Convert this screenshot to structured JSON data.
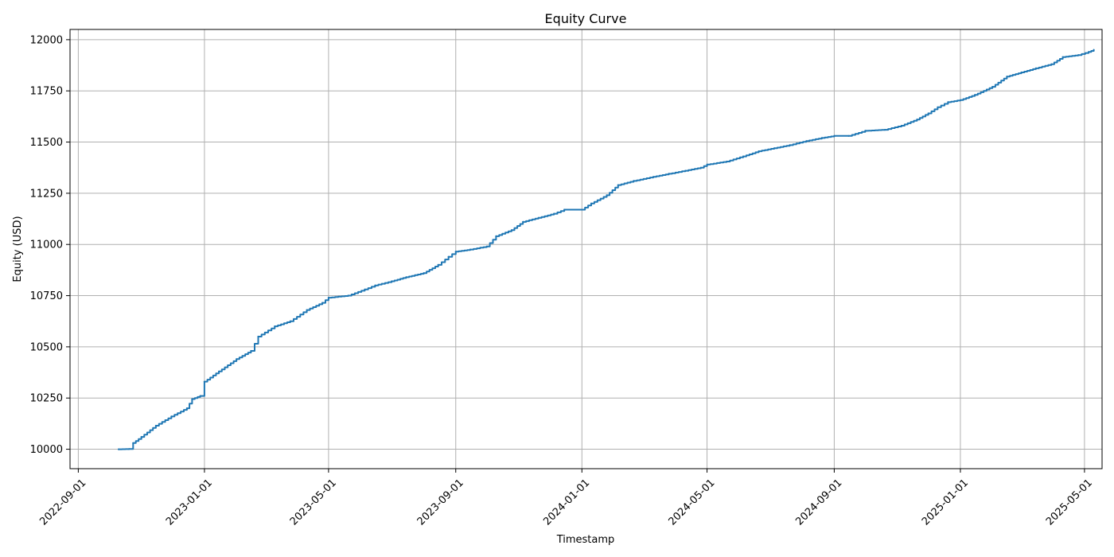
{
  "chart_data": {
    "type": "line",
    "title": "Equity Curve",
    "xlabel": "Timestamp",
    "ylabel": "Equity (USD)",
    "x_range": [
      "2022-08-24",
      "2025-05-18"
    ],
    "ylim": [
      9905,
      12050
    ],
    "x_ticks": [
      "2022-09-01",
      "2023-01-01",
      "2023-05-01",
      "2023-09-01",
      "2024-01-01",
      "2024-05-01",
      "2024-09-01",
      "2025-01-01",
      "2025-05-01"
    ],
    "y_ticks": [
      10000,
      10250,
      10500,
      10750,
      11000,
      11250,
      11500,
      11750,
      12000
    ],
    "grid": true,
    "line_color": "#1f77b4",
    "series": [
      {
        "name": "",
        "points": [
          [
            "2022-10-10",
            10000
          ],
          [
            "2022-10-20",
            10001
          ],
          [
            "2022-10-24",
            10030
          ],
          [
            "2022-11-01",
            10060
          ],
          [
            "2022-11-15",
            10115
          ],
          [
            "2022-11-30",
            10160
          ],
          [
            "2022-12-15",
            10200
          ],
          [
            "2022-12-20",
            10245
          ],
          [
            "2022-12-28",
            10260
          ],
          [
            "2023-01-01",
            10330
          ],
          [
            "2023-01-15",
            10380
          ],
          [
            "2023-02-01",
            10440
          ],
          [
            "2023-02-15",
            10480
          ],
          [
            "2023-02-22",
            10550
          ],
          [
            "2023-03-10",
            10600
          ],
          [
            "2023-03-25",
            10625
          ],
          [
            "2023-04-10",
            10680
          ],
          [
            "2023-04-25",
            10715
          ],
          [
            "2023-05-01",
            10740
          ],
          [
            "2023-05-20",
            10750
          ],
          [
            "2023-06-05",
            10780
          ],
          [
            "2023-06-15",
            10800
          ],
          [
            "2023-07-01",
            10820
          ],
          [
            "2023-07-15",
            10840
          ],
          [
            "2023-08-01",
            10860
          ],
          [
            "2023-08-15",
            10900
          ],
          [
            "2023-08-25",
            10940
          ],
          [
            "2023-09-01",
            10965
          ],
          [
            "2023-09-15",
            10975
          ],
          [
            "2023-10-01",
            10990
          ],
          [
            "2023-10-10",
            11040
          ],
          [
            "2023-10-25",
            11070
          ],
          [
            "2023-11-05",
            11110
          ],
          [
            "2023-11-20",
            11130
          ],
          [
            "2023-12-05",
            11150
          ],
          [
            "2023-12-15",
            11170
          ],
          [
            "2024-01-01",
            11170
          ],
          [
            "2024-01-10",
            11200
          ],
          [
            "2024-01-25",
            11240
          ],
          [
            "2024-02-05",
            11290
          ],
          [
            "2024-02-20",
            11310
          ],
          [
            "2024-03-10",
            11330
          ],
          [
            "2024-03-25",
            11345
          ],
          [
            "2024-04-10",
            11360
          ],
          [
            "2024-04-25",
            11375
          ],
          [
            "2024-05-01",
            11390
          ],
          [
            "2024-05-20",
            11405
          ],
          [
            "2024-06-05",
            11430
          ],
          [
            "2024-06-20",
            11455
          ],
          [
            "2024-07-05",
            11470
          ],
          [
            "2024-07-20",
            11485
          ],
          [
            "2024-08-05",
            11505
          ],
          [
            "2024-08-20",
            11520
          ],
          [
            "2024-09-01",
            11530
          ],
          [
            "2024-09-15",
            11530
          ],
          [
            "2024-10-01",
            11555
          ],
          [
            "2024-10-20",
            11560
          ],
          [
            "2024-11-05",
            11580
          ],
          [
            "2024-11-20",
            11610
          ],
          [
            "2024-12-01",
            11640
          ],
          [
            "2024-12-10",
            11670
          ],
          [
            "2024-12-20",
            11695
          ],
          [
            "2025-01-01",
            11705
          ],
          [
            "2025-01-15",
            11730
          ],
          [
            "2025-02-01",
            11770
          ],
          [
            "2025-02-15",
            11820
          ],
          [
            "2025-03-01",
            11840
          ],
          [
            "2025-03-15",
            11860
          ],
          [
            "2025-03-30",
            11880
          ],
          [
            "2025-04-10",
            11915
          ],
          [
            "2025-04-25",
            11925
          ],
          [
            "2025-05-05",
            11940
          ],
          [
            "2025-05-10",
            11950
          ]
        ]
      }
    ]
  }
}
